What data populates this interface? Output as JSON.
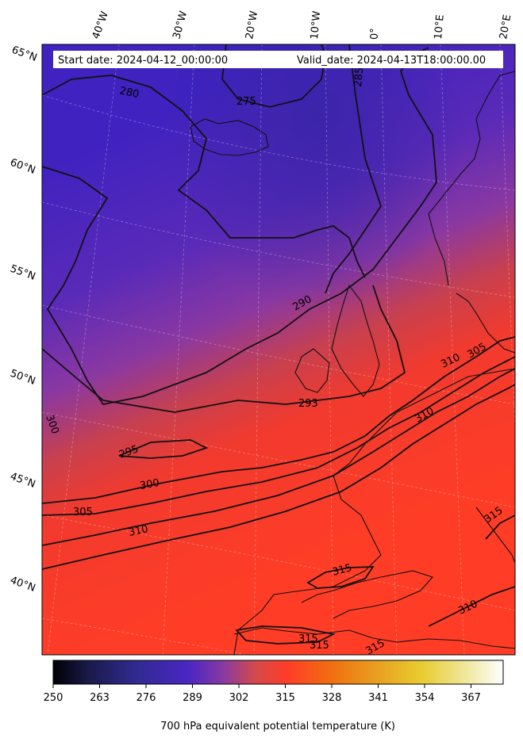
{
  "header": {
    "start_date": "Start date: 2024-04-12_00:00:00",
    "valid_date": "Valid_date: 2024-04-13T18:00:00.00"
  },
  "map": {
    "longitude_labels": [
      "40°W",
      "30°W",
      "20°W",
      "10°W",
      "0°",
      "10°E",
      "20°E"
    ],
    "latitude_labels": [
      "65°N",
      "60°N",
      "55°N",
      "50°N",
      "45°N",
      "40°N"
    ],
    "contour_labels": [
      "280",
      "275",
      "285",
      "290",
      "293",
      "300",
      "295",
      "300",
      "305",
      "310",
      "310",
      "305",
      "310",
      "315",
      "315",
      "315",
      "315",
      "310",
      "315"
    ]
  },
  "colorbar": {
    "ticks": [
      "250",
      "263",
      "276",
      "289",
      "302",
      "315",
      "328",
      "341",
      "354",
      "367"
    ],
    "label": "700 hPa equivalent potential temperature (K)",
    "range": [
      250,
      376
    ],
    "colors": [
      "#000004",
      "#1b1a4a",
      "#2f2a8e",
      "#4a26c4",
      "#8a3aa0",
      "#d44a4a",
      "#ff3c28",
      "#f07010",
      "#e8a020",
      "#e8cc30",
      "#f0e8a0",
      "#ffffff"
    ]
  }
}
